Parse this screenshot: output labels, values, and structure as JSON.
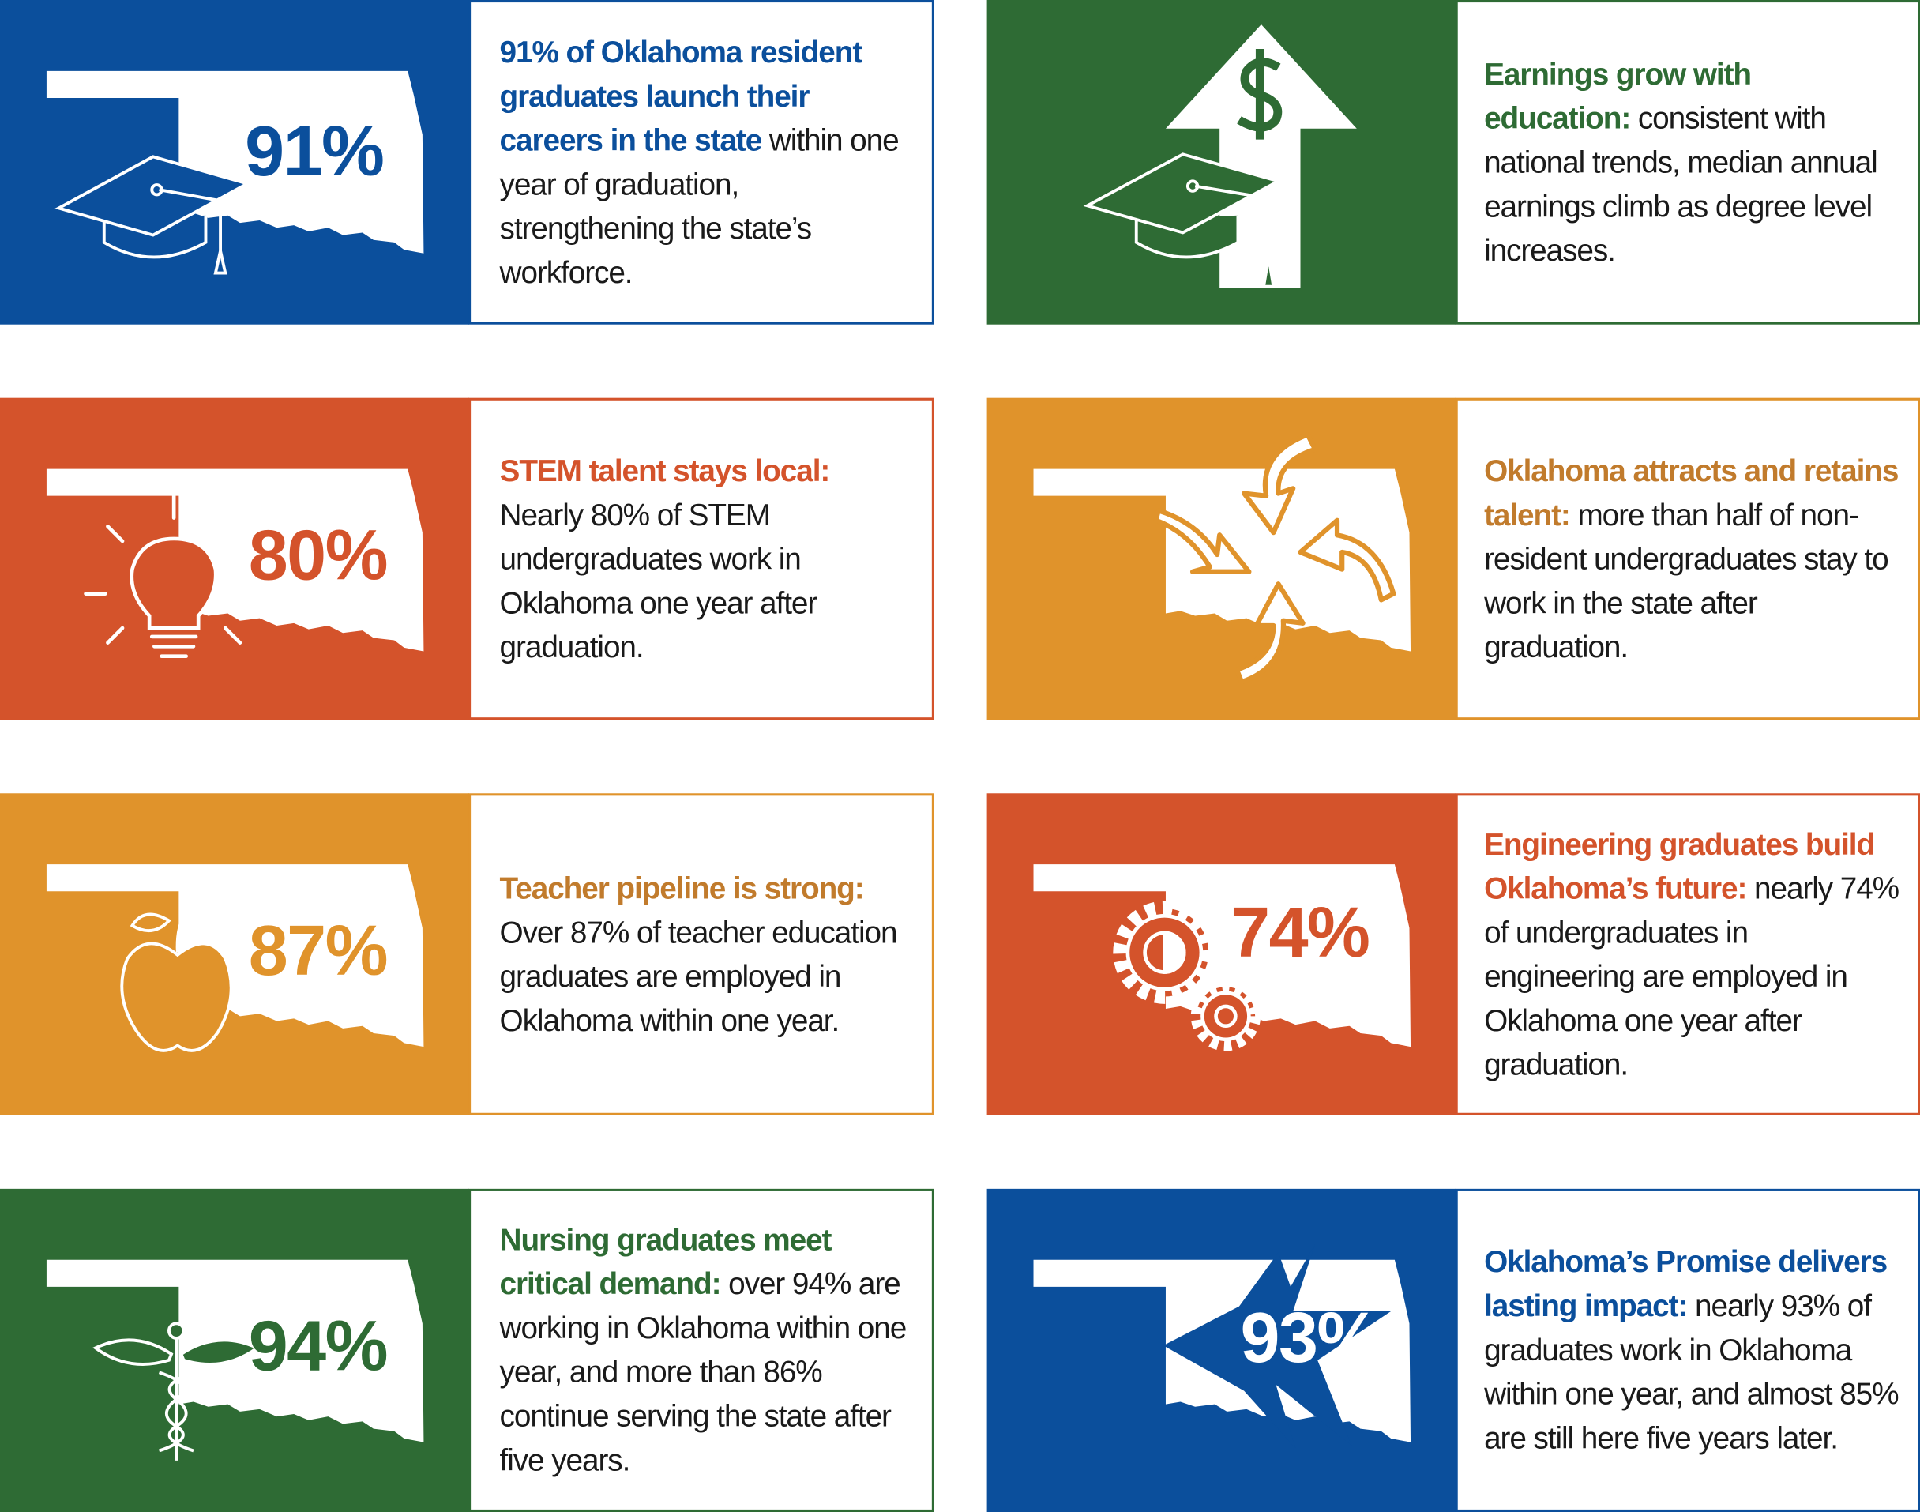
{
  "cards": [
    {
      "stat": "91%",
      "lead": "91% of Oklahoma resident graduates launch their careers in the state",
      "body": "within one year of graduation, strengthening the state’s workforce."
    },
    {
      "lead": "Earnings grow with education:",
      "body": "consistent with national trends, median annual earnings climb as degree level increases."
    },
    {
      "stat": "80%",
      "lead": "STEM talent stays local:",
      "body": "Nearly 80% of STEM undergraduates work in Oklahoma one year after graduation."
    },
    {
      "lead": "Oklahoma attracts and retains talent:",
      "body": "more than half of non-resident undergraduates stay to work in the state after graduation."
    },
    {
      "stat": "87%",
      "lead": "Teacher pipeline is strong:",
      "body": "Over 87% of teacher education graduates are employed in Oklahoma within one year."
    },
    {
      "stat": "74%",
      "lead": "Engineering graduates build Oklahoma’s future:",
      "body": "nearly 74% of undergraduates in engineering are employed in Oklahoma one year after graduation."
    },
    {
      "stat": "94%",
      "lead": "Nursing graduates meet critical demand:",
      "body": "over 94% are working in Oklahoma within one year, and more than 86% continue serving the state after five years."
    },
    {
      "stat": "93%",
      "lead": "Oklahoma’s Promise delivers lasting impact:",
      "body": "nearly 93% of graduates work in Oklahoma within one year, and almost 85% are still here five years later."
    }
  ]
}
